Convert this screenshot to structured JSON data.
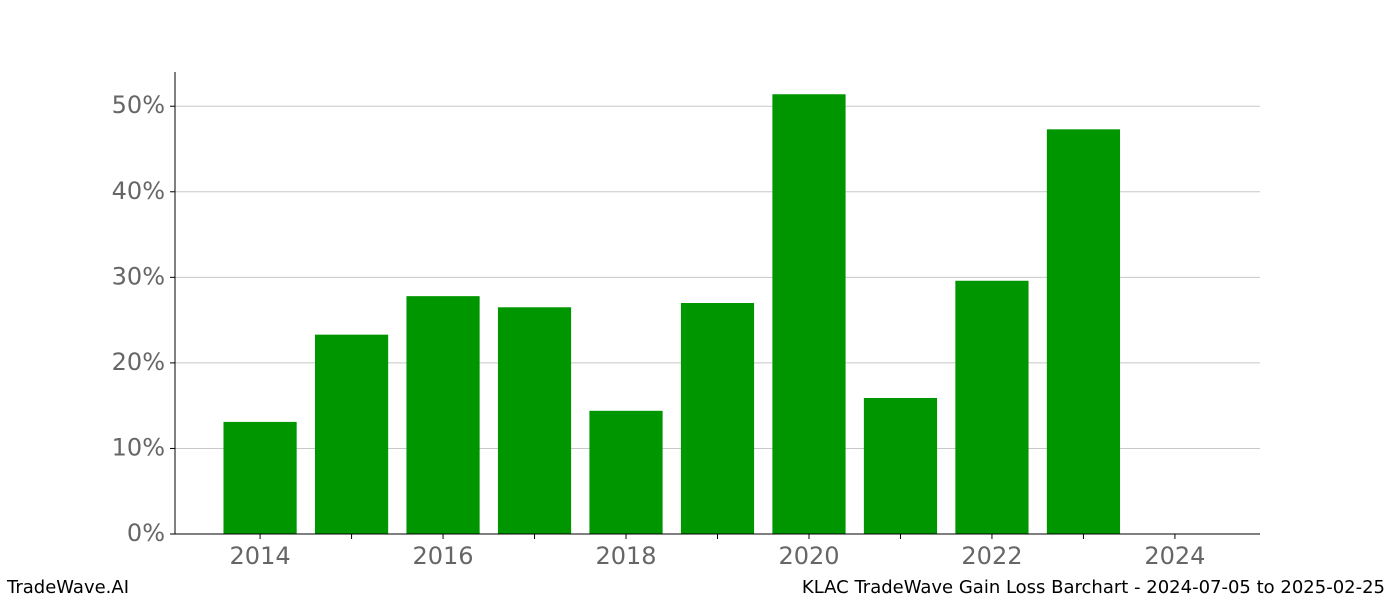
{
  "chart_data": {
    "type": "bar",
    "x": [
      2014,
      2015,
      2016,
      2017,
      2018,
      2019,
      2020,
      2021,
      2022,
      2023
    ],
    "values": [
      13.1,
      23.3,
      27.8,
      26.5,
      14.4,
      27.0,
      51.4,
      15.9,
      29.6,
      47.3
    ],
    "color": "#009600",
    "xlim": [
      2013.07,
      2024.93
    ],
    "xticks": [
      2014,
      2016,
      2018,
      2020,
      2022,
      2024
    ],
    "xticks_minor": [
      2015,
      2017,
      2019,
      2021,
      2023
    ],
    "ylim": [
      0,
      54
    ],
    "yticks": [
      {
        "value": 0,
        "label": "0%"
      },
      {
        "value": 10,
        "label": "10%"
      },
      {
        "value": 20,
        "label": "20%"
      },
      {
        "value": 30,
        "label": "30%"
      },
      {
        "value": 40,
        "label": "40%"
      },
      {
        "value": 50,
        "label": "50%"
      }
    ],
    "grid": true,
    "watermark": "TradeWave.AI",
    "caption": "KLAC TradeWave Gain Loss Barchart - 2024-07-05 to 2025-02-25"
  }
}
